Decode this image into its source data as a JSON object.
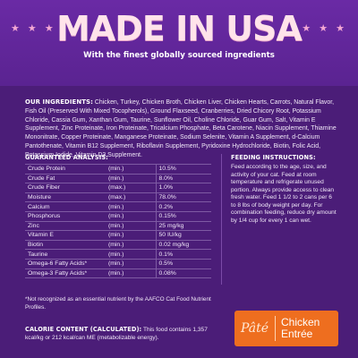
{
  "header": {
    "stars_left": "★ ★ ★",
    "stars_right": "★ ★ ★",
    "headline": "MADE IN USA",
    "subhead": "With the finest globally sourced ingredients"
  },
  "ingredients": {
    "title": "OUR INGREDIENTS:",
    "text": "Chicken, Turkey, Chicken Broth, Chicken Liver, Chicken Hearts, Carrots, Natural Flavor, Fish Oil (Preserved With Mixed Tocopherols), Ground Flaxseed, Cranberries, Dried Chicory Root, Potassium Chloride, Cassia Gum, Xanthan Gum, Taurine, Sunflower Oil, Choline Chloride, Guar Gum, Salt, Vitamin E Supplement, Zinc Proteinate, Iron Proteinate, Tricalcium Phosphate, Beta Carotene, Niacin Supplement, Thiamine Mononitrate, Copper Proteinate, Manganese Proteinate, Sodium Selenite, Vitamin A Supplement, d-Calcium Pantothenate, Vitamin B12 Supplement, Riboflavin Supplement, Pyridoxine Hydrochloride, Biotin, Folic Acid, Potassium Iodide, Vitamin D3 Supplement."
  },
  "analysis": {
    "title": "GUARANTEED ANALYSIS:",
    "rows": [
      {
        "name": "Crude Protein",
        "qualifier": "(min.)",
        "value": "10.5%"
      },
      {
        "name": "Crude Fat",
        "qualifier": "(min.)",
        "value": "8.0%"
      },
      {
        "name": "Crude Fiber",
        "qualifier": "(max.)",
        "value": "1.0%"
      },
      {
        "name": "Moisture",
        "qualifier": "(max.)",
        "value": "78.0%"
      },
      {
        "name": "Calcium",
        "qualifier": "(min.)",
        "value": "0.2%"
      },
      {
        "name": "Phosphorus",
        "qualifier": "(min.)",
        "value": "0.15%"
      },
      {
        "name": "Zinc",
        "qualifier": "(min.)",
        "value": "25 mg/kg"
      },
      {
        "name": "Vitamin E",
        "qualifier": "(min.)",
        "value": "50 IU/kg"
      },
      {
        "name": "Biotin",
        "qualifier": "(min.)",
        "value": "0.02 mg/kg"
      },
      {
        "name": "Taurine",
        "qualifier": "(min.)",
        "value": "0.1%"
      },
      {
        "name": "Omega-6 Fatty Acids*",
        "qualifier": "(min.)",
        "value": "0.5%"
      },
      {
        "name": "Omega-3 Fatty Acids*",
        "qualifier": "(min.)",
        "value": "0.08%"
      }
    ]
  },
  "feeding": {
    "title": "FEEDING INSTRUCTIONS:",
    "text": "Feed according to the age, size, and activity of your cat. Feed at room temperature and refrigerate unused portion. Always provide access to clean fresh water. Feed 1 1/2 to 2 cans per 6 to 8 lbs of body weight per day. For combination feeding, reduce dry amount by 1/4 cup for every 1 can wet."
  },
  "footnote": "*Not recognized as an essential nutrient by the AAFCO Cat Food Nutrient Profiles.",
  "calorie": {
    "title": "CALORIE CONTENT (CALCULATED):",
    "text": "This food contains 1,357 kcal/kg or 212 kcal/can ME (metabolizable energy)."
  },
  "badge": {
    "style": "Pâté",
    "flavor_line1": "Chicken",
    "flavor_line2": "Entrée",
    "color": "#ee6e1f"
  },
  "colors": {
    "background": "#4b1d78",
    "header": "#6a2aa5",
    "headline": "#ffe3ea",
    "stars": "#f4a8d4"
  }
}
